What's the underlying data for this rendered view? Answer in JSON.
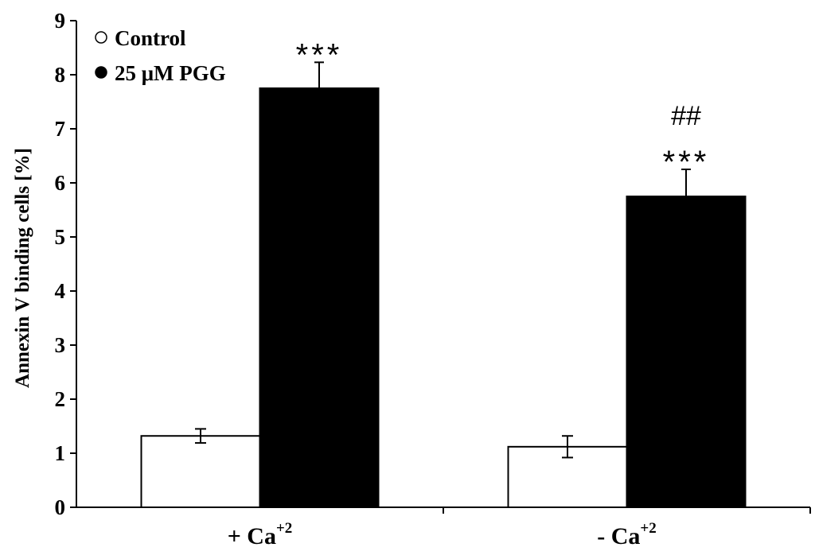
{
  "chart_data": {
    "type": "bar",
    "categories": [
      {
        "base": "+ Ca",
        "sup": "+2"
      },
      {
        "base": "- Ca",
        "sup": "+2"
      }
    ],
    "series": [
      {
        "name": "Control",
        "color": "#ffffff",
        "values": [
          1.32,
          1.12
        ],
        "errors": [
          0.13,
          0.2
        ]
      },
      {
        "name": "25 μM PGG",
        "color": "#000000",
        "values": [
          7.75,
          5.75
        ],
        "errors": [
          0.48,
          0.5
        ]
      }
    ],
    "annotations": [
      {
        "category": 0,
        "series": 1,
        "lines": [
          "***"
        ]
      },
      {
        "category": 1,
        "series": 1,
        "lines": [
          "##",
          "***"
        ]
      }
    ],
    "ylabel": "Annexin V binding cells [%]",
    "xlabel": "",
    "ylim": [
      0,
      9
    ],
    "yticks": [
      "0",
      "1",
      "2",
      "3",
      "4",
      "5",
      "6",
      "7",
      "8",
      "9"
    ],
    "legend_position": "top-left",
    "grid": false
  }
}
